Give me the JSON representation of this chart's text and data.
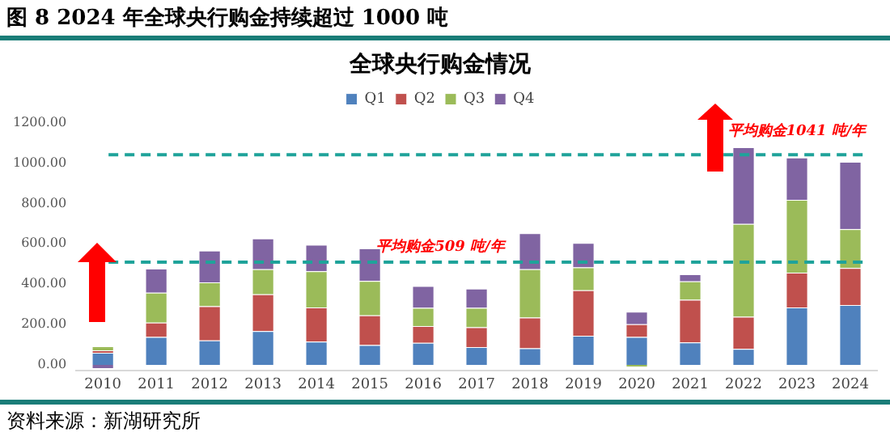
{
  "chart_data": {
    "type": "bar",
    "stacked": true,
    "title": "图 8   2024 年全球央行购金持续超过 1000 吨",
    "subtitle": "全球央行购金情况",
    "categories": [
      "2010",
      "2011",
      "2012",
      "2013",
      "2014",
      "2015",
      "2016",
      "2017",
      "2018",
      "2019",
      "2020",
      "2021",
      "2022",
      "2023",
      "2024"
    ],
    "series": [
      {
        "name": "Q1",
        "color": "#4f81bd",
        "values": [
          60,
          138,
          121,
          167,
          115,
          98,
          109,
          88,
          82,
          144,
          138,
          111,
          79,
          284,
          296
        ]
      },
      {
        "name": "Q2",
        "color": "#c0504d",
        "values": [
          12,
          71,
          169,
          182,
          169,
          147,
          83,
          98,
          152,
          226,
          63,
          211,
          159,
          173,
          184
        ]
      },
      {
        "name": "Q3",
        "color": "#9bbb59",
        "values": [
          20,
          148,
          119,
          125,
          180,
          171,
          90,
          96,
          240,
          113,
          -12,
          92,
          460,
          361,
          192
        ]
      },
      {
        "name": "Q4",
        "color": "#8064a2",
        "values": [
          -20,
          120,
          157,
          152,
          131,
          161,
          109,
          96,
          178,
          121,
          62,
          35,
          380,
          209,
          334
        ]
      }
    ],
    "ylim": [
      -30,
      1200
    ],
    "yticks": [
      {
        "value": 0,
        "label": "0.00"
      },
      {
        "value": 200,
        "label": "200.00"
      },
      {
        "value": 400,
        "label": "400.00"
      },
      {
        "value": 600,
        "label": "600.00"
      },
      {
        "value": 800,
        "label": "800.00"
      },
      {
        "value": 1000,
        "label": "1000.00"
      },
      {
        "value": 1200,
        "label": "1200.00"
      }
    ],
    "ref_lines": [
      {
        "axis": "y",
        "value": 509,
        "label": "平均购金509 吨/年",
        "color": "#1fa39a",
        "line_style": "dashed"
      },
      {
        "axis": "y",
        "value": 1041,
        "label": "平均购金1041 吨/年",
        "color": "#1fa39a",
        "line_style": "dashed"
      }
    ],
    "legend": "top",
    "grid": false,
    "annotations": [
      "资料来源：新湖研究所"
    ]
  }
}
